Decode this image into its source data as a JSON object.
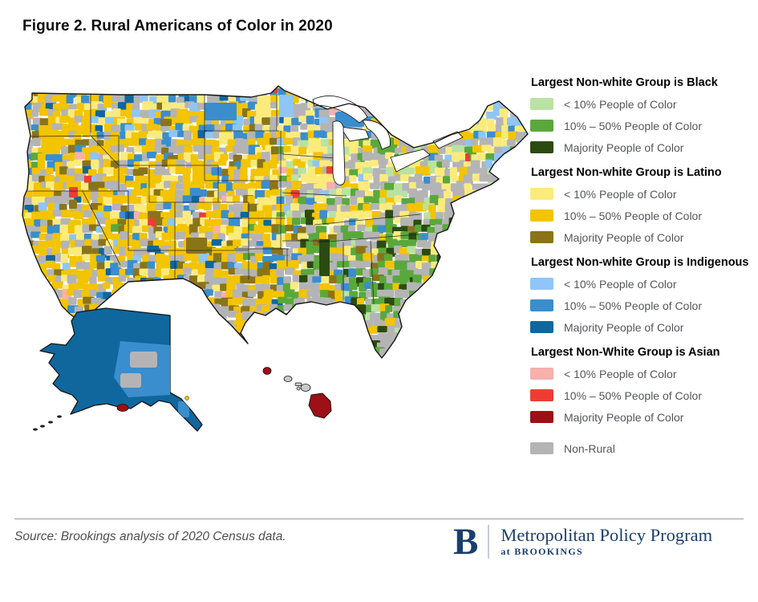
{
  "figure": {
    "title": "Figure 2. Rural Americans of Color in 2020"
  },
  "legend": {
    "groups": [
      {
        "header": "Largest Non-white Group is Black",
        "items": [
          {
            "label": "< 10% People of Color",
            "color": "#b9e2a3"
          },
          {
            "label": "10% – 50% People of Color",
            "color": "#5aa83c"
          },
          {
            "label": "Majority People of Color",
            "color": "#2c4b10"
          }
        ]
      },
      {
        "header": "Largest Non-white Group is Latino",
        "items": [
          {
            "label": "< 10% People of Color",
            "color": "#fbeb7d"
          },
          {
            "label": "10% – 50% People of Color",
            "color": "#f3c400"
          },
          {
            "label": "Majority People of Color",
            "color": "#8a741a"
          }
        ]
      },
      {
        "header": "Largest Non-white Group is Indigenous",
        "items": [
          {
            "label": "< 10% People of Color",
            "color": "#8fc5f7"
          },
          {
            "label": "10% – 50% People of Color",
            "color": "#3a8ecd"
          },
          {
            "label": "Majority People of Color",
            "color": "#0f679e"
          }
        ]
      },
      {
        "header": "Largest Non-White Group is Asian",
        "items": [
          {
            "label": "< 10% People of Color",
            "color": "#f7b0ab"
          },
          {
            "label": "10% – 50% People of Color",
            "color": "#ee3c35"
          },
          {
            "label": "Majority People of Color",
            "color": "#9c1016"
          }
        ]
      }
    ],
    "non_rural": {
      "label": "Non-Rural",
      "color": "#b4b4b6"
    }
  },
  "source": {
    "text": "Source: Brookings analysis of 2020 Census data."
  },
  "logo": {
    "letter": "B",
    "program": "Metropolitan Policy Program",
    "sub": "at BROOKINGS",
    "color": "#1a3e6e"
  }
}
